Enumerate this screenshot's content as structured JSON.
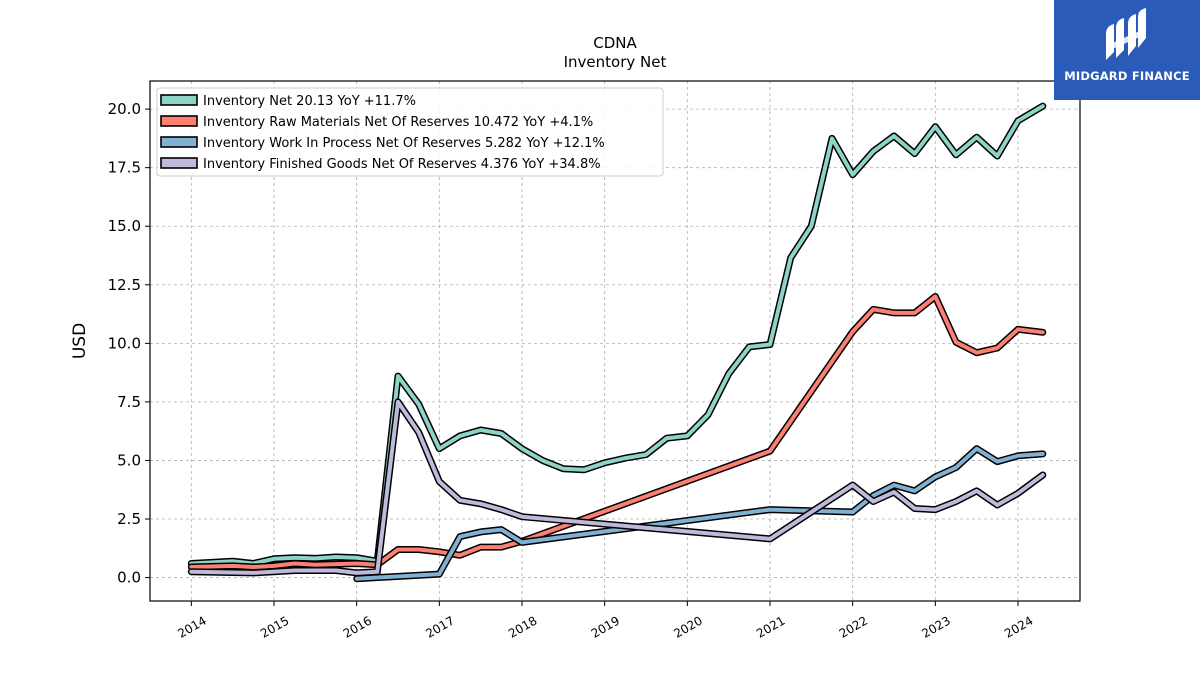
{
  "chart_data": {
    "type": "line",
    "title": "CDNA",
    "subtitle": "Inventory Net",
    "ylabel": "USD",
    "xlabel": "",
    "xlim": [
      2013.5,
      2024.75
    ],
    "ylim": [
      -1.0,
      21.2
    ],
    "y_ticks": [
      0.0,
      2.5,
      5.0,
      7.5,
      10.0,
      12.5,
      15.0,
      17.5,
      20.0
    ],
    "y_tick_labels": [
      "0.0",
      "2.5",
      "5.0",
      "7.5",
      "10.0",
      "12.5",
      "15.0",
      "17.5",
      "20.0"
    ],
    "x_ticks": [
      2014,
      2015,
      2016,
      2017,
      2018,
      2019,
      2020,
      2021,
      2022,
      2023,
      2024
    ],
    "x_tick_labels": [
      "2014",
      "2015",
      "2016",
      "2017",
      "2018",
      "2019",
      "2020",
      "2021",
      "2022",
      "2023",
      "2024"
    ],
    "grid": true,
    "legend_position": "top-left",
    "series": [
      {
        "name": "Inventory Net",
        "legend_label": "Inventory Net  20.13 YoY +11.7%",
        "color": "#8dd3c7",
        "points": [
          [
            2014.0,
            0.6
          ],
          [
            2014.25,
            0.65
          ],
          [
            2014.5,
            0.7
          ],
          [
            2014.75,
            0.6
          ],
          [
            2015.0,
            0.8
          ],
          [
            2015.25,
            0.85
          ],
          [
            2015.5,
            0.82
          ],
          [
            2015.75,
            0.88
          ],
          [
            2016.0,
            0.85
          ],
          [
            2016.25,
            0.7
          ],
          [
            2016.5,
            8.6
          ],
          [
            2016.75,
            7.4
          ],
          [
            2017.0,
            5.5
          ],
          [
            2017.25,
            6.05
          ],
          [
            2017.5,
            6.3
          ],
          [
            2017.75,
            6.15
          ],
          [
            2018.0,
            5.5
          ],
          [
            2018.25,
            5.0
          ],
          [
            2018.5,
            4.65
          ],
          [
            2018.75,
            4.6
          ],
          [
            2019.0,
            4.9
          ],
          [
            2019.25,
            5.1
          ],
          [
            2019.5,
            5.25
          ],
          [
            2019.75,
            5.95
          ],
          [
            2020.0,
            6.05
          ],
          [
            2020.25,
            6.95
          ],
          [
            2020.5,
            8.7
          ],
          [
            2020.75,
            9.85
          ],
          [
            2021.0,
            9.95
          ],
          [
            2021.25,
            13.65
          ],
          [
            2021.5,
            15.0
          ],
          [
            2021.75,
            18.75
          ],
          [
            2022.0,
            17.2
          ],
          [
            2022.25,
            18.2
          ],
          [
            2022.5,
            18.85
          ],
          [
            2022.75,
            18.1
          ],
          [
            2023.0,
            19.25
          ],
          [
            2023.25,
            18.05
          ],
          [
            2023.5,
            18.8
          ],
          [
            2023.75,
            18.0
          ],
          [
            2024.0,
            19.5
          ],
          [
            2024.3,
            20.13
          ]
        ]
      },
      {
        "name": "Inventory Raw Materials Net Of Reserves",
        "legend_label": "Inventory Raw Materials Net Of Reserves  10.472 YoY +4.1%",
        "color": "#fb8072",
        "points": [
          [
            2014.0,
            0.45
          ],
          [
            2014.5,
            0.5
          ],
          [
            2014.75,
            0.45
          ],
          [
            2015.0,
            0.5
          ],
          [
            2015.25,
            0.6
          ],
          [
            2015.5,
            0.55
          ],
          [
            2016.0,
            0.6
          ],
          [
            2016.25,
            0.55
          ],
          [
            2016.5,
            1.2
          ],
          [
            2016.75,
            1.2
          ],
          [
            2017.0,
            1.1
          ],
          [
            2017.25,
            0.95
          ],
          [
            2017.5,
            1.3
          ],
          [
            2017.75,
            1.3
          ],
          [
            2018.0,
            1.55
          ],
          [
            2021.0,
            5.4
          ],
          [
            2022.0,
            10.5
          ],
          [
            2022.25,
            11.45
          ],
          [
            2022.5,
            11.3
          ],
          [
            2022.75,
            11.3
          ],
          [
            2023.0,
            12.0
          ],
          [
            2023.25,
            10.05
          ],
          [
            2023.5,
            9.6
          ],
          [
            2023.75,
            9.8
          ],
          [
            2024.0,
            10.6
          ],
          [
            2024.3,
            10.47
          ]
        ]
      },
      {
        "name": "Inventory Work In Process Net Of Reserves",
        "legend_label": "Inventory Work In Process Net Of Reserves  5.282 YoY +12.1%",
        "color": "#80b1d3",
        "points": [
          [
            2016.0,
            -0.05
          ],
          [
            2017.0,
            0.15
          ],
          [
            2017.25,
            1.75
          ],
          [
            2017.5,
            1.95
          ],
          [
            2017.75,
            2.05
          ],
          [
            2018.0,
            1.5
          ],
          [
            2021.0,
            2.9
          ],
          [
            2022.0,
            2.8
          ],
          [
            2022.25,
            3.5
          ],
          [
            2022.5,
            3.95
          ],
          [
            2022.75,
            3.7
          ],
          [
            2023.0,
            4.3
          ],
          [
            2023.25,
            4.7
          ],
          [
            2023.5,
            5.5
          ],
          [
            2023.75,
            4.95
          ],
          [
            2024.0,
            5.2
          ],
          [
            2024.3,
            5.28
          ]
        ]
      },
      {
        "name": "Inventory Finished Goods Net Of Reserves",
        "legend_label": "Inventory Finished Goods Net Of Reserves  4.376 YoY +34.8%",
        "color": "#bebada",
        "points": [
          [
            2014.0,
            0.25
          ],
          [
            2014.75,
            0.2
          ],
          [
            2015.25,
            0.3
          ],
          [
            2015.75,
            0.3
          ],
          [
            2016.0,
            0.2
          ],
          [
            2016.25,
            0.25
          ],
          [
            2016.5,
            7.5
          ],
          [
            2016.75,
            6.2
          ],
          [
            2017.0,
            4.1
          ],
          [
            2017.25,
            3.3
          ],
          [
            2017.5,
            3.15
          ],
          [
            2017.75,
            2.9
          ],
          [
            2018.0,
            2.6
          ],
          [
            2021.0,
            1.65
          ],
          [
            2022.0,
            3.95
          ],
          [
            2022.25,
            3.25
          ],
          [
            2022.5,
            3.65
          ],
          [
            2022.75,
            2.95
          ],
          [
            2023.0,
            2.9
          ],
          [
            2023.25,
            3.25
          ],
          [
            2023.5,
            3.7
          ],
          [
            2023.75,
            3.1
          ],
          [
            2024.0,
            3.6
          ],
          [
            2024.3,
            4.38
          ]
        ]
      }
    ]
  },
  "branding": {
    "logo_text": "MIDGARD FINANCE",
    "logo_icon": "midgard-logo-icon",
    "logo_bg": "#2b5bb8"
  }
}
